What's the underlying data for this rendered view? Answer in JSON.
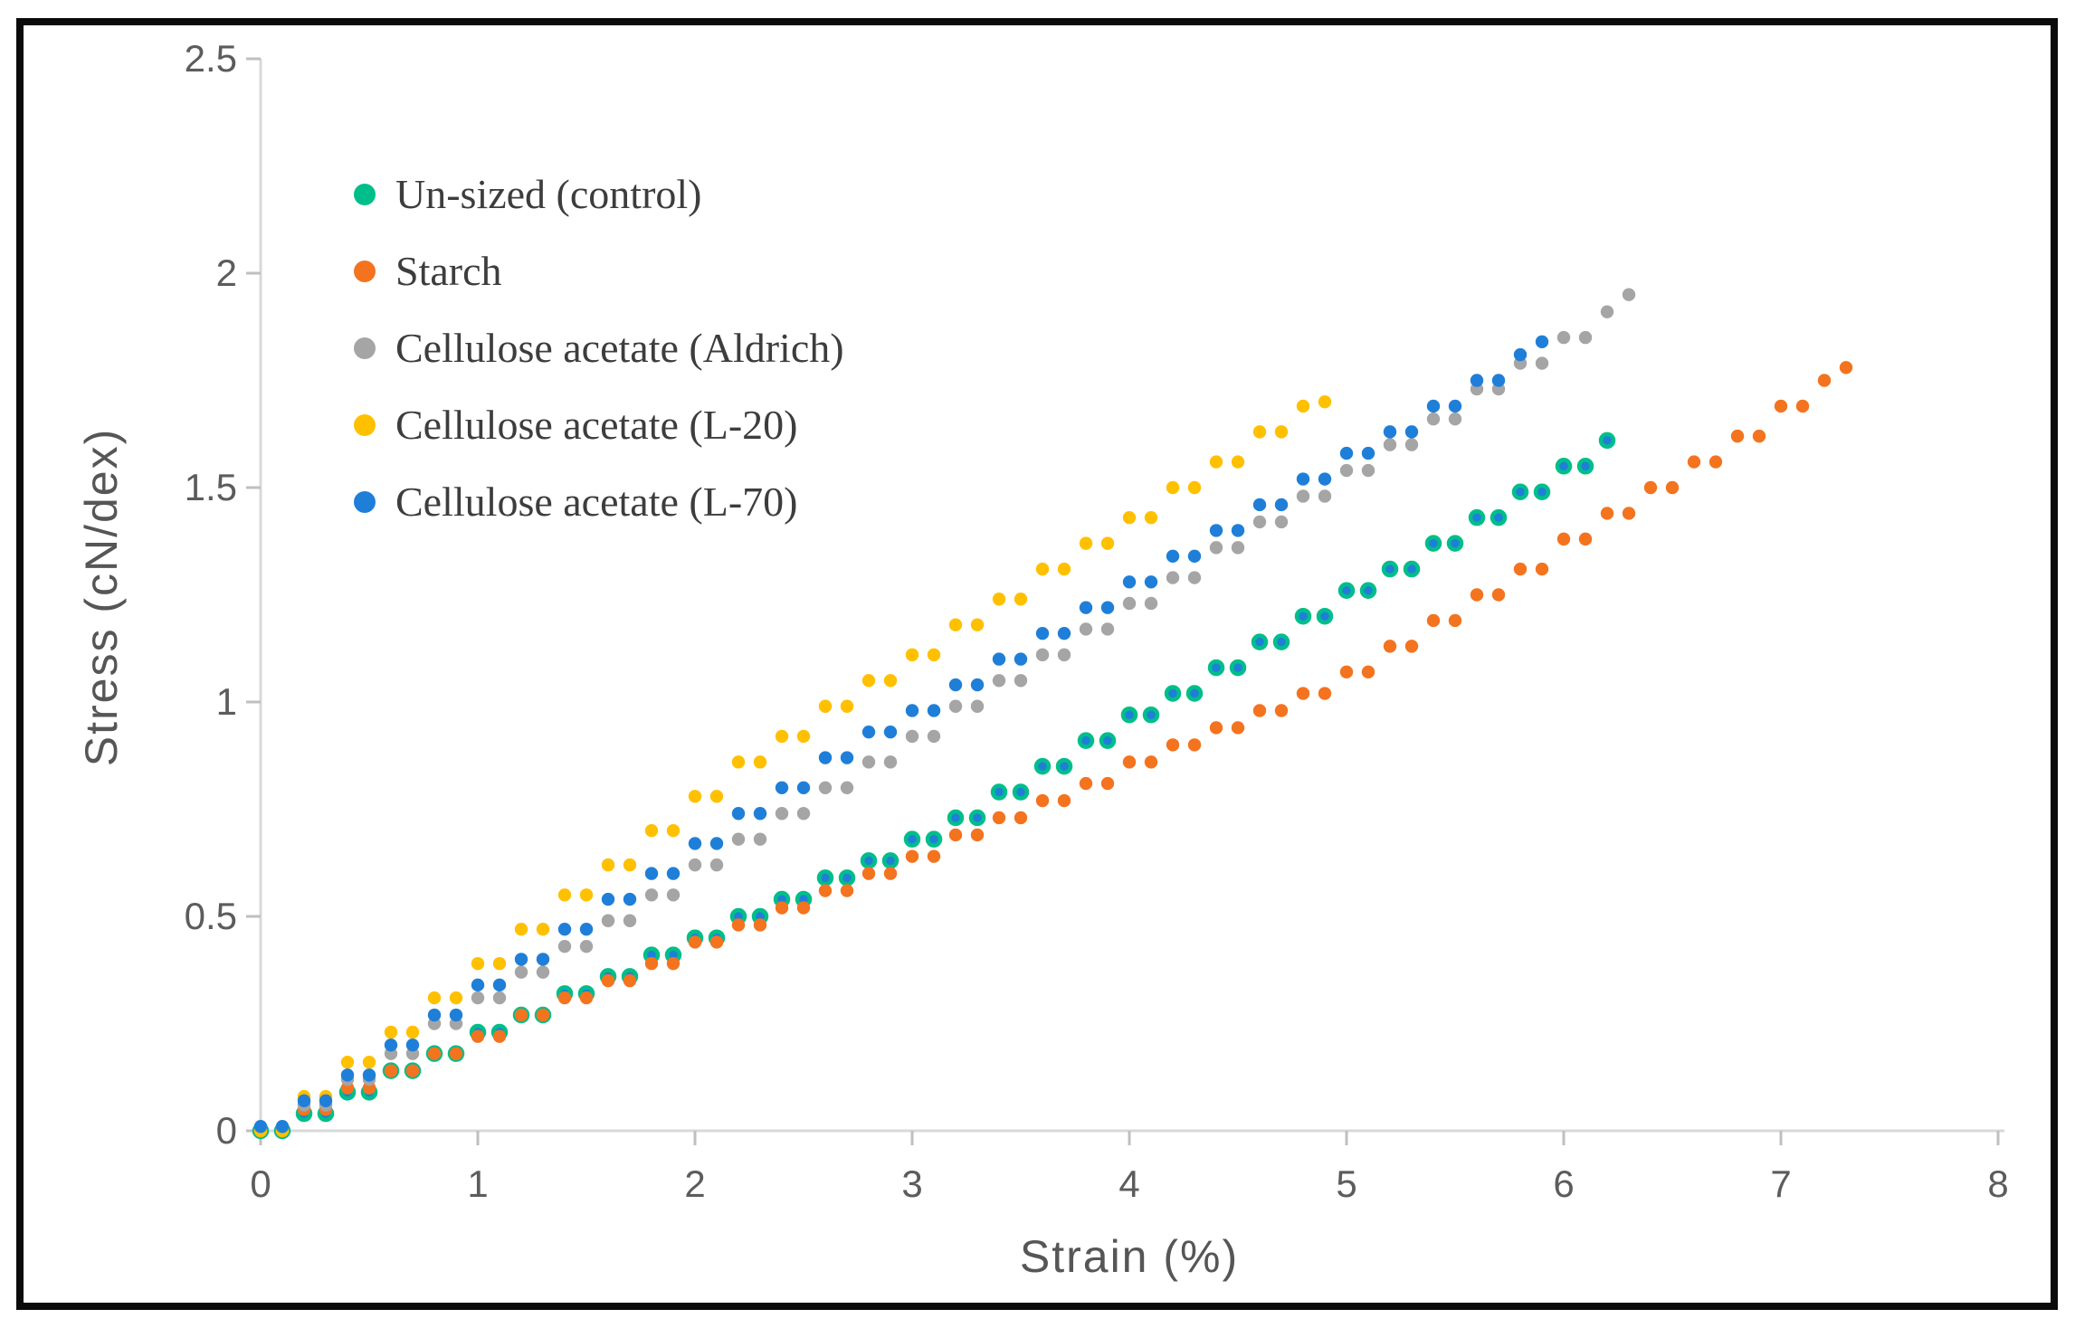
{
  "chart_data": {
    "type": "scatter",
    "title": "",
    "xlabel": "Strain (%)",
    "ylabel": "Stress (cN/dex)",
    "xlim": [
      0,
      8
    ],
    "ylim": [
      0,
      2.5
    ],
    "grid": false,
    "legend_position": "upper-left-inside",
    "axis_color": "#d8d8d8",
    "tick_color": "#bfbfbf",
    "tick_label_color": "#5c5c5c",
    "xticks": [
      0,
      1,
      2,
      3,
      4,
      5,
      6,
      7,
      8
    ],
    "xtick_labels": [
      "0",
      "1",
      "2",
      "3",
      "4",
      "5",
      "6",
      "7",
      "8"
    ],
    "yticks": [
      0,
      0.5,
      1,
      1.5,
      2,
      2.5
    ],
    "ytick_labels": [
      "0",
      "0.5",
      "1",
      "1.5",
      "2",
      "2.5"
    ],
    "series": [
      {
        "name": "Un-sized (control)",
        "color": "#00be8a",
        "marker": "ring",
        "marker_inner": "#1f7fd8",
        "points": [
          [
            0,
            0
          ],
          [
            0.1,
            0
          ],
          [
            0.2,
            0.04
          ],
          [
            0.3,
            0.04
          ],
          [
            0.4,
            0.09
          ],
          [
            0.5,
            0.09
          ],
          [
            0.6,
            0.14
          ],
          [
            0.7,
            0.14
          ],
          [
            0.8,
            0.18
          ],
          [
            0.9,
            0.18
          ],
          [
            1,
            0.23
          ],
          [
            1.1,
            0.23
          ],
          [
            1.2,
            0.27
          ],
          [
            1.3,
            0.27
          ],
          [
            1.4,
            0.32
          ],
          [
            1.5,
            0.32
          ],
          [
            1.6,
            0.36
          ],
          [
            1.7,
            0.36
          ],
          [
            1.8,
            0.41
          ],
          [
            1.9,
            0.41
          ],
          [
            2,
            0.45
          ],
          [
            2.1,
            0.45
          ],
          [
            2.2,
            0.5
          ],
          [
            2.3,
            0.5
          ],
          [
            2.4,
            0.54
          ],
          [
            2.5,
            0.54
          ],
          [
            2.6,
            0.59
          ],
          [
            2.7,
            0.59
          ],
          [
            2.8,
            0.63
          ],
          [
            2.9,
            0.63
          ],
          [
            3,
            0.68
          ],
          [
            3.1,
            0.68
          ],
          [
            3.2,
            0.73
          ],
          [
            3.3,
            0.73
          ],
          [
            3.4,
            0.79
          ],
          [
            3.5,
            0.79
          ],
          [
            3.6,
            0.85
          ],
          [
            3.7,
            0.85
          ],
          [
            3.8,
            0.91
          ],
          [
            3.9,
            0.91
          ],
          [
            4,
            0.97
          ],
          [
            4.1,
            0.97
          ],
          [
            4.2,
            1.02
          ],
          [
            4.3,
            1.02
          ],
          [
            4.4,
            1.08
          ],
          [
            4.5,
            1.08
          ],
          [
            4.6,
            1.14
          ],
          [
            4.7,
            1.14
          ],
          [
            4.8,
            1.2
          ],
          [
            4.9,
            1.2
          ],
          [
            5,
            1.26
          ],
          [
            5.1,
            1.26
          ],
          [
            5.2,
            1.31
          ],
          [
            5.3,
            1.31
          ],
          [
            5.4,
            1.37
          ],
          [
            5.5,
            1.37
          ],
          [
            5.6,
            1.43
          ],
          [
            5.7,
            1.43
          ],
          [
            5.8,
            1.49
          ],
          [
            5.9,
            1.49
          ],
          [
            6,
            1.55
          ],
          [
            6.1,
            1.55
          ],
          [
            6.2,
            1.61
          ]
        ]
      },
      {
        "name": "Starch",
        "color": "#f4731f",
        "marker": "dot",
        "points": [
          [
            0,
            0
          ],
          [
            0.1,
            0
          ],
          [
            0.2,
            0.05
          ],
          [
            0.3,
            0.05
          ],
          [
            0.4,
            0.1
          ],
          [
            0.5,
            0.1
          ],
          [
            0.6,
            0.14
          ],
          [
            0.7,
            0.14
          ],
          [
            0.8,
            0.18
          ],
          [
            0.9,
            0.18
          ],
          [
            1,
            0.22
          ],
          [
            1.1,
            0.22
          ],
          [
            1.2,
            0.27
          ],
          [
            1.3,
            0.27
          ],
          [
            1.4,
            0.31
          ],
          [
            1.5,
            0.31
          ],
          [
            1.6,
            0.35
          ],
          [
            1.7,
            0.35
          ],
          [
            1.8,
            0.39
          ],
          [
            1.9,
            0.39
          ],
          [
            2,
            0.44
          ],
          [
            2.1,
            0.44
          ],
          [
            2.2,
            0.48
          ],
          [
            2.3,
            0.48
          ],
          [
            2.4,
            0.52
          ],
          [
            2.5,
            0.52
          ],
          [
            2.6,
            0.56
          ],
          [
            2.7,
            0.56
          ],
          [
            2.8,
            0.6
          ],
          [
            2.9,
            0.6
          ],
          [
            3,
            0.64
          ],
          [
            3.1,
            0.64
          ],
          [
            3.2,
            0.69
          ],
          [
            3.3,
            0.69
          ],
          [
            3.4,
            0.73
          ],
          [
            3.5,
            0.73
          ],
          [
            3.6,
            0.77
          ],
          [
            3.7,
            0.77
          ],
          [
            3.8,
            0.81
          ],
          [
            3.9,
            0.81
          ],
          [
            4,
            0.86
          ],
          [
            4.1,
            0.86
          ],
          [
            4.2,
            0.9
          ],
          [
            4.3,
            0.9
          ],
          [
            4.4,
            0.94
          ],
          [
            4.5,
            0.94
          ],
          [
            4.6,
            0.98
          ],
          [
            4.7,
            0.98
          ],
          [
            4.8,
            1.02
          ],
          [
            4.9,
            1.02
          ],
          [
            5,
            1.07
          ],
          [
            5.1,
            1.07
          ],
          [
            5.2,
            1.13
          ],
          [
            5.3,
            1.13
          ],
          [
            5.4,
            1.19
          ],
          [
            5.5,
            1.19
          ],
          [
            5.6,
            1.25
          ],
          [
            5.7,
            1.25
          ],
          [
            5.8,
            1.31
          ],
          [
            5.9,
            1.31
          ],
          [
            6,
            1.38
          ],
          [
            6.1,
            1.38
          ],
          [
            6.2,
            1.44
          ],
          [
            6.3,
            1.44
          ],
          [
            6.4,
            1.5
          ],
          [
            6.5,
            1.5
          ],
          [
            6.6,
            1.56
          ],
          [
            6.7,
            1.56
          ],
          [
            6.8,
            1.62
          ],
          [
            6.9,
            1.62
          ],
          [
            7,
            1.69
          ],
          [
            7.1,
            1.69
          ],
          [
            7.2,
            1.75
          ],
          [
            7.3,
            1.78
          ]
        ]
      },
      {
        "name": "Cellulose acetate (Aldrich)",
        "color": "#a5a5a5",
        "marker": "dot",
        "points": [
          [
            0,
            0
          ],
          [
            0.1,
            0
          ],
          [
            0.2,
            0.06
          ],
          [
            0.3,
            0.06
          ],
          [
            0.4,
            0.12
          ],
          [
            0.5,
            0.12
          ],
          [
            0.6,
            0.18
          ],
          [
            0.7,
            0.18
          ],
          [
            0.8,
            0.25
          ],
          [
            0.9,
            0.25
          ],
          [
            1,
            0.31
          ],
          [
            1.1,
            0.31
          ],
          [
            1.2,
            0.37
          ],
          [
            1.3,
            0.37
          ],
          [
            1.4,
            0.43
          ],
          [
            1.5,
            0.43
          ],
          [
            1.6,
            0.49
          ],
          [
            1.7,
            0.49
          ],
          [
            1.8,
            0.55
          ],
          [
            1.9,
            0.55
          ],
          [
            2,
            0.62
          ],
          [
            2.1,
            0.62
          ],
          [
            2.2,
            0.68
          ],
          [
            2.3,
            0.68
          ],
          [
            2.4,
            0.74
          ],
          [
            2.5,
            0.74
          ],
          [
            2.6,
            0.8
          ],
          [
            2.7,
            0.8
          ],
          [
            2.8,
            0.86
          ],
          [
            2.9,
            0.86
          ],
          [
            3,
            0.92
          ],
          [
            3.1,
            0.92
          ],
          [
            3.2,
            0.99
          ],
          [
            3.3,
            0.99
          ],
          [
            3.4,
            1.05
          ],
          [
            3.5,
            1.05
          ],
          [
            3.6,
            1.11
          ],
          [
            3.7,
            1.11
          ],
          [
            3.8,
            1.17
          ],
          [
            3.9,
            1.17
          ],
          [
            4,
            1.23
          ],
          [
            4.1,
            1.23
          ],
          [
            4.2,
            1.29
          ],
          [
            4.3,
            1.29
          ],
          [
            4.4,
            1.36
          ],
          [
            4.5,
            1.36
          ],
          [
            4.6,
            1.42
          ],
          [
            4.7,
            1.42
          ],
          [
            4.8,
            1.48
          ],
          [
            4.9,
            1.48
          ],
          [
            5,
            1.54
          ],
          [
            5.1,
            1.54
          ],
          [
            5.2,
            1.6
          ],
          [
            5.3,
            1.6
          ],
          [
            5.4,
            1.66
          ],
          [
            5.5,
            1.66
          ],
          [
            5.6,
            1.73
          ],
          [
            5.7,
            1.73
          ],
          [
            5.8,
            1.79
          ],
          [
            5.9,
            1.79
          ],
          [
            6,
            1.85
          ],
          [
            6.1,
            1.85
          ],
          [
            6.2,
            1.91
          ],
          [
            6.3,
            1.95
          ]
        ]
      },
      {
        "name": "Cellulose acetate (L-20)",
        "color": "#ffc000",
        "marker": "dot",
        "points": [
          [
            0,
            0
          ],
          [
            0.1,
            0
          ],
          [
            0.2,
            0.08
          ],
          [
            0.3,
            0.08
          ],
          [
            0.4,
            0.16
          ],
          [
            0.5,
            0.16
          ],
          [
            0.6,
            0.23
          ],
          [
            0.7,
            0.23
          ],
          [
            0.8,
            0.31
          ],
          [
            0.9,
            0.31
          ],
          [
            1,
            0.39
          ],
          [
            1.1,
            0.39
          ],
          [
            1.2,
            0.47
          ],
          [
            1.3,
            0.47
          ],
          [
            1.4,
            0.55
          ],
          [
            1.5,
            0.55
          ],
          [
            1.6,
            0.62
          ],
          [
            1.7,
            0.62
          ],
          [
            1.8,
            0.7
          ],
          [
            1.9,
            0.7
          ],
          [
            2,
            0.78
          ],
          [
            2.1,
            0.78
          ],
          [
            2.2,
            0.86
          ],
          [
            2.3,
            0.86
          ],
          [
            2.4,
            0.92
          ],
          [
            2.5,
            0.92
          ],
          [
            2.6,
            0.99
          ],
          [
            2.7,
            0.99
          ],
          [
            2.8,
            1.05
          ],
          [
            2.9,
            1.05
          ],
          [
            3,
            1.11
          ],
          [
            3.1,
            1.11
          ],
          [
            3.2,
            1.18
          ],
          [
            3.3,
            1.18
          ],
          [
            3.4,
            1.24
          ],
          [
            3.5,
            1.24
          ],
          [
            3.6,
            1.31
          ],
          [
            3.7,
            1.31
          ],
          [
            3.8,
            1.37
          ],
          [
            3.9,
            1.37
          ],
          [
            4,
            1.43
          ],
          [
            4.1,
            1.43
          ],
          [
            4.2,
            1.5
          ],
          [
            4.3,
            1.5
          ],
          [
            4.4,
            1.56
          ],
          [
            4.5,
            1.56
          ],
          [
            4.6,
            1.63
          ],
          [
            4.7,
            1.63
          ],
          [
            4.8,
            1.69
          ],
          [
            4.9,
            1.7
          ]
        ]
      },
      {
        "name": "Cellulose acetate (L-70)",
        "color": "#1f7fd8",
        "marker": "dot",
        "points": [
          [
            0,
            0.01
          ],
          [
            0.1,
            0.01
          ],
          [
            0.2,
            0.07
          ],
          [
            0.3,
            0.07
          ],
          [
            0.4,
            0.13
          ],
          [
            0.5,
            0.13
          ],
          [
            0.6,
            0.2
          ],
          [
            0.7,
            0.2
          ],
          [
            0.8,
            0.27
          ],
          [
            0.9,
            0.27
          ],
          [
            1,
            0.34
          ],
          [
            1.1,
            0.34
          ],
          [
            1.2,
            0.4
          ],
          [
            1.3,
            0.4
          ],
          [
            1.4,
            0.47
          ],
          [
            1.5,
            0.47
          ],
          [
            1.6,
            0.54
          ],
          [
            1.7,
            0.54
          ],
          [
            1.8,
            0.6
          ],
          [
            1.9,
            0.6
          ],
          [
            2,
            0.67
          ],
          [
            2.1,
            0.67
          ],
          [
            2.2,
            0.74
          ],
          [
            2.3,
            0.74
          ],
          [
            2.4,
            0.8
          ],
          [
            2.5,
            0.8
          ],
          [
            2.6,
            0.87
          ],
          [
            2.7,
            0.87
          ],
          [
            2.8,
            0.93
          ],
          [
            2.9,
            0.93
          ],
          [
            3,
            0.98
          ],
          [
            3.1,
            0.98
          ],
          [
            3.2,
            1.04
          ],
          [
            3.3,
            1.04
          ],
          [
            3.4,
            1.1
          ],
          [
            3.5,
            1.1
          ],
          [
            3.6,
            1.16
          ],
          [
            3.7,
            1.16
          ],
          [
            3.8,
            1.22
          ],
          [
            3.9,
            1.22
          ],
          [
            4,
            1.28
          ],
          [
            4.1,
            1.28
          ],
          [
            4.2,
            1.34
          ],
          [
            4.3,
            1.34
          ],
          [
            4.4,
            1.4
          ],
          [
            4.5,
            1.4
          ],
          [
            4.6,
            1.46
          ],
          [
            4.7,
            1.46
          ],
          [
            4.8,
            1.52
          ],
          [
            4.9,
            1.52
          ],
          [
            5,
            1.58
          ],
          [
            5.1,
            1.58
          ],
          [
            5.2,
            1.63
          ],
          [
            5.3,
            1.63
          ],
          [
            5.4,
            1.69
          ],
          [
            5.5,
            1.69
          ],
          [
            5.6,
            1.75
          ],
          [
            5.7,
            1.75
          ],
          [
            5.8,
            1.81
          ],
          [
            5.9,
            1.84
          ]
        ]
      }
    ]
  }
}
